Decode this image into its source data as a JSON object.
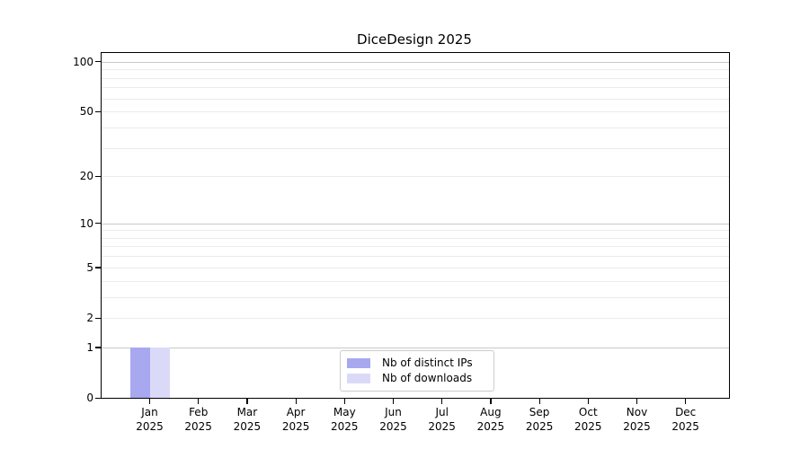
{
  "chart_data": {
    "type": "bar",
    "title": "DiceDesign 2025",
    "xlabel": "",
    "ylabel": "",
    "categories": [
      "Jan",
      "Feb",
      "Mar",
      "Apr",
      "May",
      "Jun",
      "Jul",
      "Aug",
      "Sep",
      "Oct",
      "Nov",
      "Dec"
    ],
    "category_sub_label": "2025",
    "series": [
      {
        "name": "Nb of distinct IPs",
        "color": "#a8a8f0",
        "values": [
          1,
          0,
          0,
          0,
          0,
          0,
          0,
          0,
          0,
          0,
          0,
          0
        ]
      },
      {
        "name": "Nb of downloads",
        "color": "#dadaf8",
        "values": [
          1,
          0,
          0,
          0,
          0,
          0,
          0,
          0,
          0,
          0,
          0,
          0
        ]
      }
    ],
    "yscale": "log1p",
    "ylim": [
      0,
      113
    ],
    "y_ticks": [
      0,
      1,
      2,
      5,
      10,
      20,
      50,
      100
    ],
    "grid_major_values": [
      1,
      10,
      100
    ],
    "grid_minor_values": [
      2,
      3,
      4,
      5,
      6,
      7,
      8,
      9,
      20,
      30,
      40,
      50,
      60,
      70,
      80,
      90
    ],
    "grid_on": true,
    "legend_position": "inside-bottom-center",
    "style": {
      "grid_major_color": "#c9c9c9",
      "grid_minor_color": "#ebebeb",
      "axis_color": "#000000",
      "background_color": "#ffffff"
    }
  }
}
